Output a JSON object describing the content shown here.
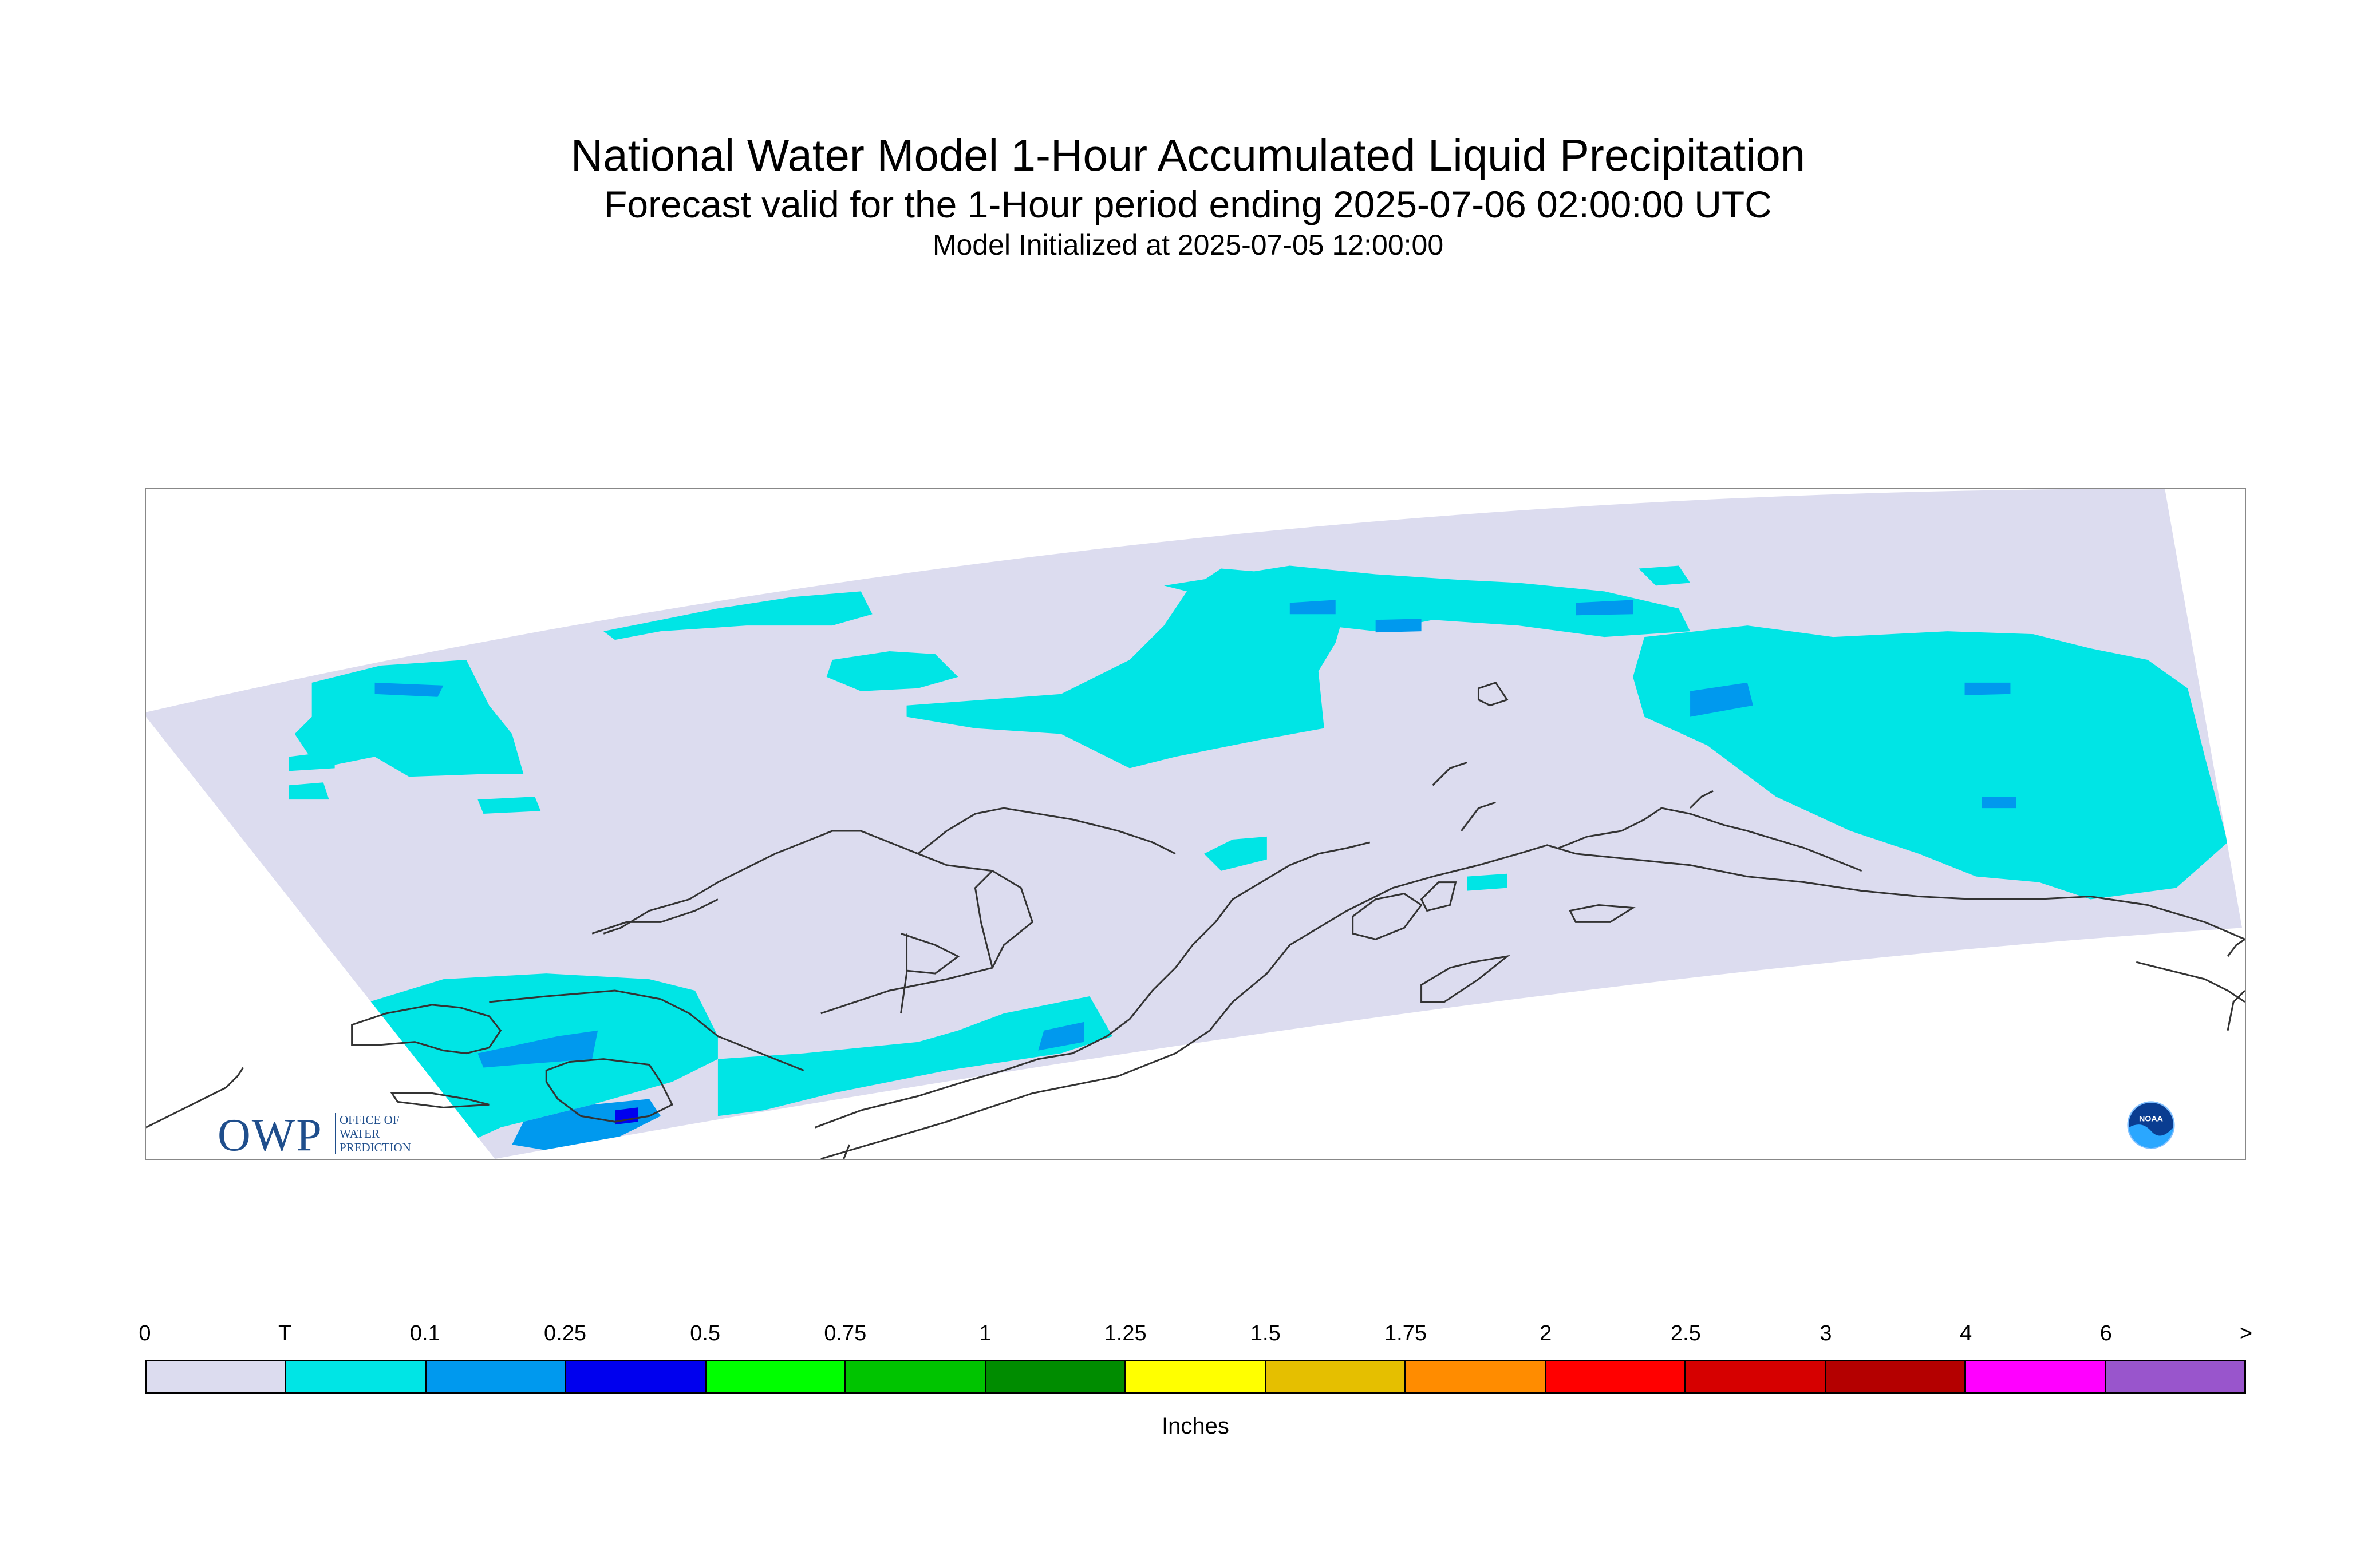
{
  "header": {
    "title": "National Water Model 1-Hour Accumulated Liquid Precipitation",
    "subtitle": "Forecast valid for the 1-Hour period ending 2025-07-06 02:00:00 UTC",
    "init": "Model Initialized at 2025-07-05 12:00:00"
  },
  "logos": {
    "owp_letters": "OWP",
    "owp_lines": [
      "OFFICE OF",
      "WATER",
      "PREDICTION"
    ],
    "noaa_text": "NOAA"
  },
  "legend": {
    "labels": [
      "0",
      "T",
      "0.1",
      "0.25",
      "0.5",
      "0.75",
      "1",
      "1.25",
      "1.5",
      "1.75",
      "2",
      "2.5",
      "3",
      "4",
      "6",
      ">"
    ],
    "colors": [
      "#dcdcef",
      "#00e5e5",
      "#0099ee",
      "#0000ee",
      "#00ff00",
      "#00c400",
      "#008c00",
      "#ffff00",
      "#e5bf00",
      "#ff8c00",
      "#ff0000",
      "#d60000",
      "#b40000",
      "#ff00ff",
      "#9955cc"
    ],
    "units": "Inches"
  },
  "map": {
    "domain_color": "#dcdcef",
    "coast_color": "#333333"
  }
}
